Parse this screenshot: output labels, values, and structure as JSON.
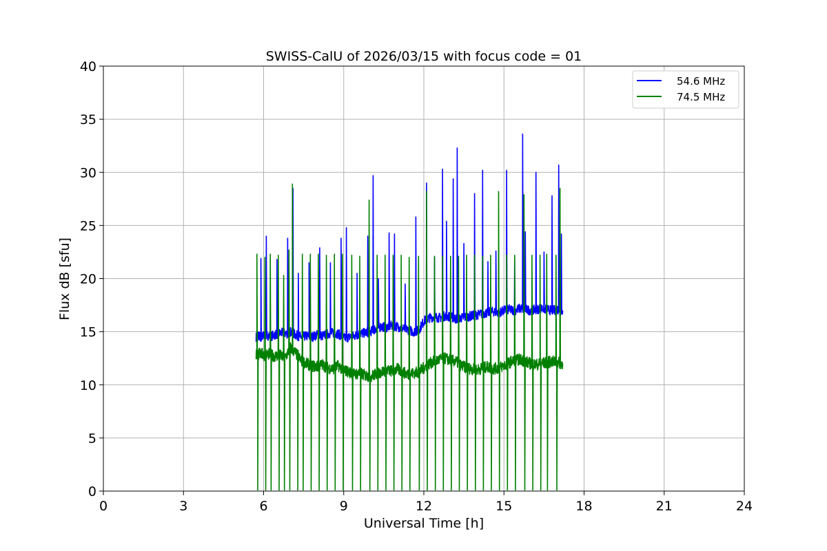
{
  "chart_data": {
    "type": "line",
    "title": "SWISS-CalU of 2026/03/15 with focus code = 01",
    "xlabel": "Universal Time [h]",
    "ylabel": "Flux dB [sfu]",
    "xlim": [
      0,
      24
    ],
    "ylim": [
      0,
      40
    ],
    "xticks": [
      0,
      3,
      6,
      9,
      12,
      15,
      18,
      21,
      24
    ],
    "yticks": [
      0,
      5,
      10,
      15,
      20,
      25,
      30,
      35,
      40
    ],
    "grid": true,
    "legend_position": "top-right",
    "series": [
      {
        "name": "54.6 MHz",
        "color": "#0000ff",
        "x": [
          5.72,
          5.8,
          5.9,
          6.0,
          6.1,
          6.3,
          6.5,
          6.7,
          6.9,
          7.0,
          7.2,
          7.4,
          7.6,
          7.8,
          8.0,
          8.2,
          8.4,
          8.6,
          8.8,
          9.0,
          9.2,
          9.4,
          9.6,
          9.8,
          10.0,
          10.2,
          10.4,
          10.6,
          10.8,
          11.0,
          11.2,
          11.4,
          11.6,
          11.8,
          12.0,
          12.2,
          12.4,
          12.6,
          12.8,
          13.0,
          13.2,
          13.4,
          13.6,
          13.8,
          14.0,
          14.2,
          14.4,
          14.6,
          14.8,
          15.0,
          15.2,
          15.4,
          15.6,
          15.8,
          16.0,
          16.2,
          16.4,
          16.6,
          16.8,
          17.0,
          17.2
        ],
        "y": [
          14.5,
          14.6,
          14.5,
          14.6,
          14.7,
          14.6,
          14.8,
          14.9,
          14.8,
          15.0,
          14.7,
          14.5,
          14.6,
          14.5,
          14.7,
          14.6,
          14.8,
          14.9,
          14.8,
          14.4,
          14.5,
          14.6,
          14.8,
          14.9,
          15.0,
          15.3,
          15.5,
          15.4,
          15.6,
          15.5,
          15.3,
          15.2,
          15.0,
          15.1,
          16.0,
          16.3,
          16.4,
          16.3,
          16.5,
          16.4,
          16.2,
          16.3,
          16.4,
          16.5,
          16.6,
          16.7,
          16.8,
          16.9,
          16.8,
          17.0,
          17.1,
          17.0,
          17.2,
          17.1,
          17.0,
          17.1,
          17.2,
          17.1,
          17.0,
          17.1,
          17.0
        ],
        "spikes": [
          {
            "x": 5.9,
            "y": 21.9
          },
          {
            "x": 6.1,
            "y": 24.0
          },
          {
            "x": 6.5,
            "y": 21.8
          },
          {
            "x": 6.9,
            "y": 23.8
          },
          {
            "x": 7.1,
            "y": 28.5
          },
          {
            "x": 7.3,
            "y": 20.5
          },
          {
            "x": 7.7,
            "y": 21.5
          },
          {
            "x": 8.1,
            "y": 22.9
          },
          {
            "x": 8.5,
            "y": 21.5
          },
          {
            "x": 8.9,
            "y": 23.8
          },
          {
            "x": 9.1,
            "y": 24.8
          },
          {
            "x": 9.5,
            "y": 20.5
          },
          {
            "x": 9.9,
            "y": 24.0
          },
          {
            "x": 10.1,
            "y": 29.7
          },
          {
            "x": 10.3,
            "y": 20.0
          },
          {
            "x": 10.7,
            "y": 24.3
          },
          {
            "x": 10.9,
            "y": 24.2
          },
          {
            "x": 11.3,
            "y": 19.5
          },
          {
            "x": 11.7,
            "y": 25.8
          },
          {
            "x": 12.1,
            "y": 29.0
          },
          {
            "x": 12.4,
            "y": 22.0
          },
          {
            "x": 12.7,
            "y": 30.3
          },
          {
            "x": 12.85,
            "y": 25.4
          },
          {
            "x": 13.1,
            "y": 29.4
          },
          {
            "x": 13.25,
            "y": 32.3
          },
          {
            "x": 13.5,
            "y": 23.3
          },
          {
            "x": 13.9,
            "y": 28.0
          },
          {
            "x": 14.2,
            "y": 30.2
          },
          {
            "x": 14.4,
            "y": 21.6
          },
          {
            "x": 14.7,
            "y": 22.6
          },
          {
            "x": 15.1,
            "y": 30.2
          },
          {
            "x": 15.4,
            "y": 21.8
          },
          {
            "x": 15.7,
            "y": 33.6
          },
          {
            "x": 15.8,
            "y": 24.4
          },
          {
            "x": 16.2,
            "y": 30.0
          },
          {
            "x": 16.5,
            "y": 22.5
          },
          {
            "x": 16.8,
            "y": 27.8
          },
          {
            "x": 17.05,
            "y": 30.7
          },
          {
            "x": 17.15,
            "y": 24.2
          }
        ]
      },
      {
        "name": "74.5 MHz",
        "color": "#008000",
        "x": [
          5.72,
          5.8,
          5.9,
          6.0,
          6.2,
          6.4,
          6.6,
          6.8,
          7.0,
          7.2,
          7.4,
          7.6,
          7.8,
          8.0,
          8.2,
          8.4,
          8.6,
          8.8,
          9.0,
          9.2,
          9.4,
          9.6,
          9.8,
          10.0,
          10.2,
          10.4,
          10.6,
          10.8,
          11.0,
          11.2,
          11.4,
          11.6,
          11.8,
          12.0,
          12.2,
          12.4,
          12.6,
          12.8,
          13.0,
          13.2,
          13.4,
          13.6,
          13.8,
          14.0,
          14.2,
          14.4,
          14.6,
          14.8,
          15.0,
          15.2,
          15.4,
          15.6,
          15.8,
          16.0,
          16.2,
          16.4,
          16.6,
          16.8,
          17.0,
          17.2
        ],
        "y": [
          12.8,
          12.9,
          13.0,
          12.8,
          12.9,
          12.7,
          12.8,
          12.5,
          13.5,
          13.0,
          12.3,
          12.0,
          11.8,
          11.7,
          11.9,
          11.6,
          11.5,
          11.8,
          11.4,
          11.2,
          11.0,
          11.1,
          10.9,
          10.8,
          11.0,
          11.2,
          11.4,
          11.3,
          11.5,
          11.2,
          11.0,
          11.1,
          11.2,
          11.6,
          12.0,
          12.2,
          12.4,
          12.5,
          12.3,
          12.2,
          11.8,
          11.6,
          11.5,
          11.4,
          11.6,
          11.7,
          11.5,
          11.6,
          11.8,
          12.1,
          12.3,
          12.4,
          12.2,
          12.0,
          11.9,
          12.0,
          12.1,
          12.2,
          12.1,
          12.0
        ],
        "spikes": [
          {
            "x": 5.75,
            "y": 22.3
          },
          {
            "x": 6.05,
            "y": 22.0
          },
          {
            "x": 6.25,
            "y": 22.3
          },
          {
            "x": 6.55,
            "y": 22.2
          },
          {
            "x": 6.75,
            "y": 20.3
          },
          {
            "x": 6.95,
            "y": 22.7
          },
          {
            "x": 7.08,
            "y": 28.9
          },
          {
            "x": 7.45,
            "y": 22.3
          },
          {
            "x": 7.75,
            "y": 22.3
          },
          {
            "x": 8.05,
            "y": 22.3
          },
          {
            "x": 8.35,
            "y": 22.2
          },
          {
            "x": 8.65,
            "y": 22.3
          },
          {
            "x": 8.95,
            "y": 22.3
          },
          {
            "x": 9.3,
            "y": 22.2
          },
          {
            "x": 9.6,
            "y": 22.1
          },
          {
            "x": 9.95,
            "y": 27.4
          },
          {
            "x": 10.25,
            "y": 22.2
          },
          {
            "x": 10.55,
            "y": 22.2
          },
          {
            "x": 10.85,
            "y": 22.2
          },
          {
            "x": 11.15,
            "y": 22.2
          },
          {
            "x": 11.45,
            "y": 22.0
          },
          {
            "x": 11.8,
            "y": 22.1
          },
          {
            "x": 12.1,
            "y": 28.2
          },
          {
            "x": 12.4,
            "y": 22.1
          },
          {
            "x": 12.7,
            "y": 22.1
          },
          {
            "x": 13.0,
            "y": 22.1
          },
          {
            "x": 13.3,
            "y": 22.1
          },
          {
            "x": 13.6,
            "y": 22.2
          },
          {
            "x": 13.9,
            "y": 22.2
          },
          {
            "x": 14.2,
            "y": 22.1
          },
          {
            "x": 14.5,
            "y": 22.2
          },
          {
            "x": 14.8,
            "y": 28.2
          },
          {
            "x": 15.1,
            "y": 22.2
          },
          {
            "x": 15.4,
            "y": 22.2
          },
          {
            "x": 15.75,
            "y": 27.9
          },
          {
            "x": 16.05,
            "y": 22.2
          },
          {
            "x": 16.35,
            "y": 22.2
          },
          {
            "x": 16.6,
            "y": 22.3
          },
          {
            "x": 16.95,
            "y": 22.2
          },
          {
            "x": 17.1,
            "y": 28.5
          }
        ],
        "drops": [
          5.75,
          6.05,
          6.25,
          6.55,
          6.75,
          6.95,
          7.25,
          7.45,
          7.75,
          8.05,
          8.35,
          8.65,
          8.95,
          9.3,
          9.6,
          9.95,
          10.25,
          10.55,
          10.85,
          11.15,
          11.45,
          11.8,
          12.1,
          12.4,
          12.7,
          13.0,
          13.3,
          13.6,
          13.9,
          14.2,
          14.5,
          14.8,
          15.1,
          15.4,
          15.75,
          16.05,
          16.35,
          16.6,
          16.95
        ]
      }
    ]
  }
}
